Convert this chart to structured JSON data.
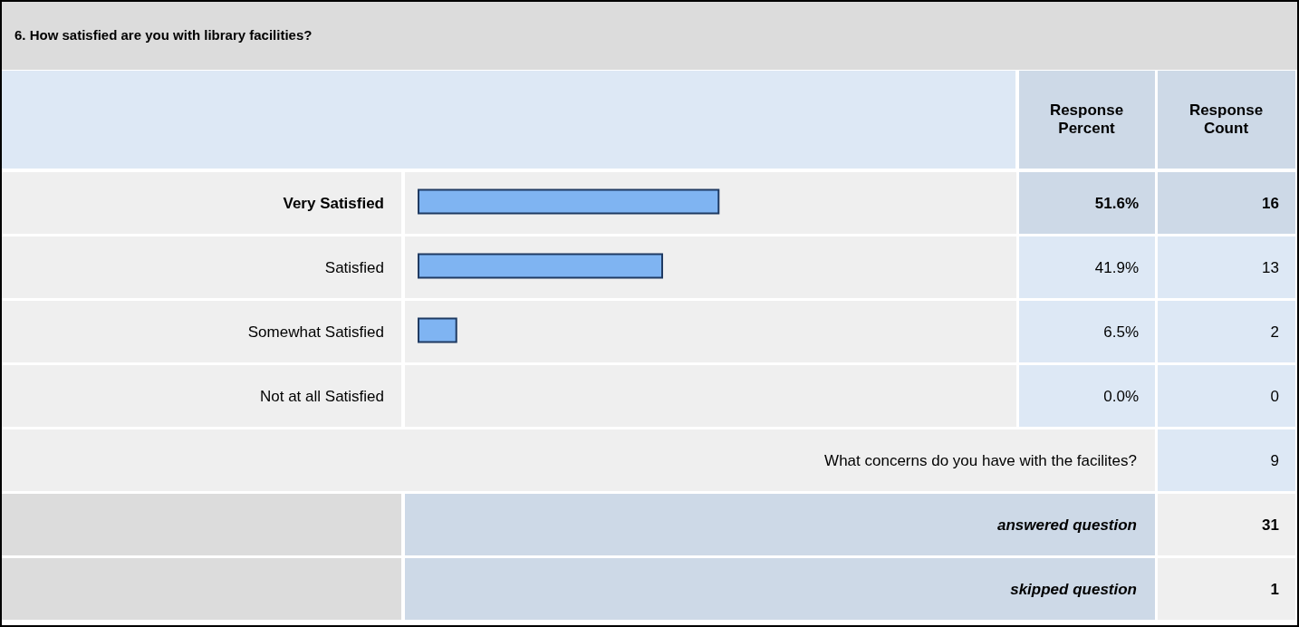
{
  "chart_data": {
    "type": "bar",
    "orientation": "horizontal",
    "title": "6. How satisfied are you with library facilities?",
    "categories": [
      "Very Satisfied",
      "Satisfied",
      "Somewhat Satisfied",
      "Not at all Satisfied"
    ],
    "series": [
      {
        "name": "Response Percent",
        "color": "#7fb4f2",
        "values": [
          51.6,
          41.9,
          6.5,
          0.0
        ],
        "value_labels": [
          "51.6%",
          "41.9%",
          "6.5%",
          "0.0%"
        ]
      }
    ],
    "annotations": [
      "Response Count",
      "16",
      "13",
      "2",
      "0",
      "What concerns do you have with the facilites?",
      "9",
      "answered question",
      "31",
      "skipped question",
      "1"
    ]
  }
}
